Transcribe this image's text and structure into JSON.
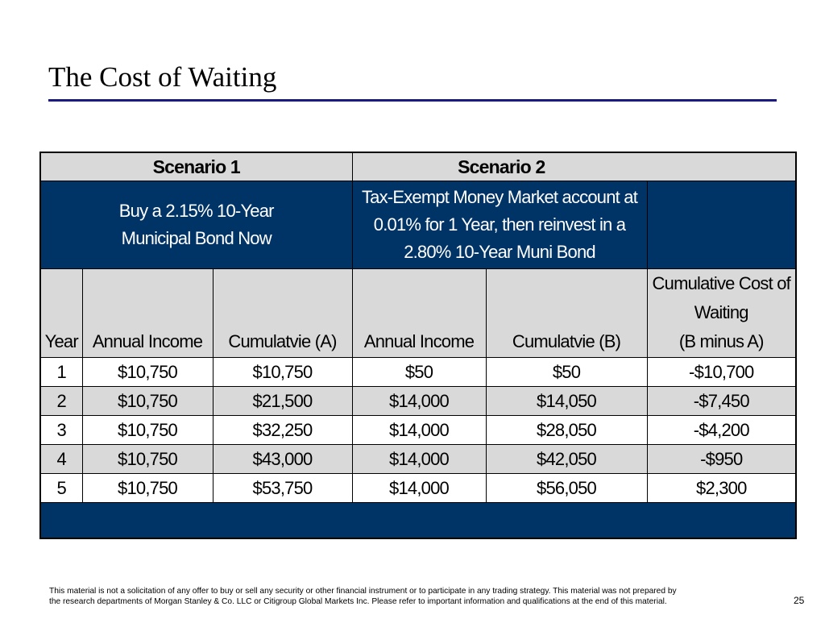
{
  "title": "The Cost of Waiting",
  "table": {
    "scenarios": [
      "Scenario 1",
      "Scenario 2"
    ],
    "scenario1_desc": [
      "Buy a 2.15% 10-Year",
      "Municipal Bond Now"
    ],
    "scenario2_desc": [
      "Tax-Exempt Money Market account at",
      "0.01% for 1 Year, then reinvest in a",
      "2.80% 10-Year Muni Bond"
    ],
    "headers": {
      "year": "Year",
      "s1_income": "Annual Income",
      "s1_cum": "Cumulatvie (A)",
      "s2_income": "Annual Income",
      "s2_cum": "Cumulatvie (B)",
      "cost": [
        "Cumulative Cost of",
        "Waiting",
        "(B minus A)"
      ]
    },
    "rows": [
      [
        "1",
        "$10,750",
        "$10,750",
        "$50",
        "$50",
        "-$10,700"
      ],
      [
        "2",
        "$10,750",
        "$21,500",
        "$14,000",
        "$14,050",
        "-$7,450"
      ],
      [
        "3",
        "$10,750",
        "$32,250",
        "$14,000",
        "$28,050",
        "-$4,200"
      ],
      [
        "4",
        "$10,750",
        "$43,000",
        "$14,000",
        "$42,050",
        "-$950"
      ],
      [
        "5",
        "$10,750",
        "$53,750",
        "$14,000",
        "$56,050",
        "$2,300"
      ]
    ]
  },
  "disclaimer": [
    "This material is not a solicitation of any offer to buy or sell any security or other financial instrument or to participate in any trading strategy.  This material was not prepared by",
    "the research departments of Morgan Stanley & Co. LLC  or Citigroup Global Markets Inc.  Please refer to important information and qualifications at the end of this material."
  ],
  "page_number": "25",
  "colors": {
    "navy": "#003366",
    "gray": "#d9d9d9",
    "rule": "#1a1a80"
  }
}
